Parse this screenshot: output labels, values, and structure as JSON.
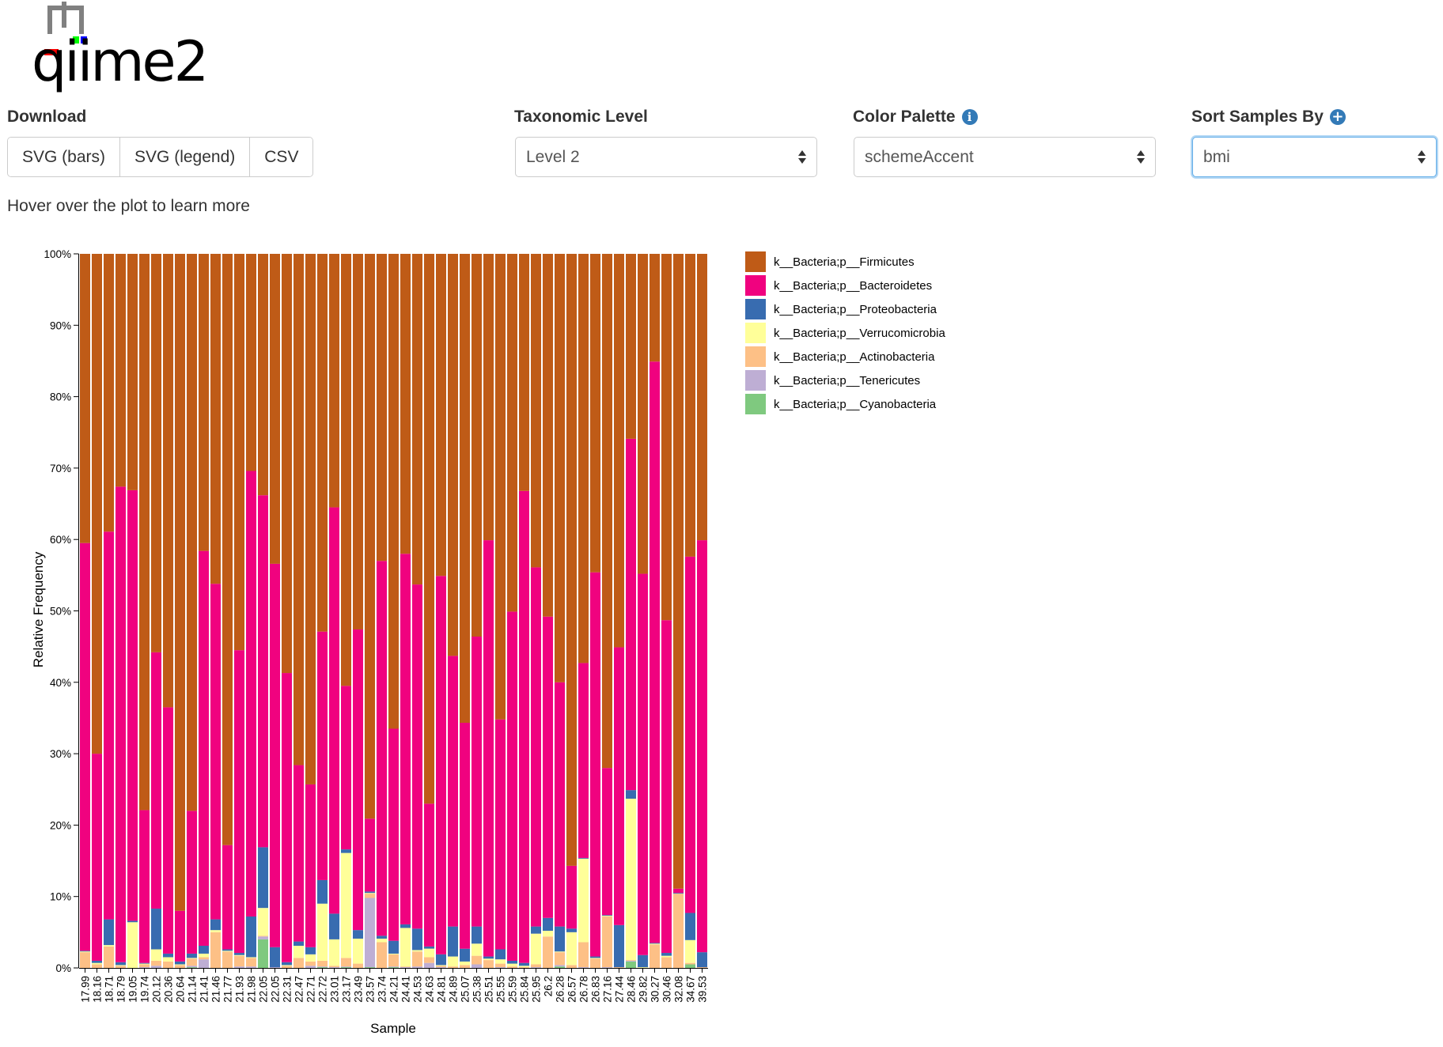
{
  "header": {
    "logo_text": "qiime2"
  },
  "controls": {
    "download": {
      "label": "Download",
      "buttons": [
        "SVG (bars)",
        "SVG (legend)",
        "CSV"
      ]
    },
    "taxonomic_level": {
      "label": "Taxonomic Level",
      "value": "Level 2"
    },
    "color_palette": {
      "label": "Color Palette",
      "value": "schemeAccent",
      "info_icon": "info-icon"
    },
    "sort_samples": {
      "label": "Sort Samples By",
      "value": "bmi",
      "add_icon": "plus-circle-icon"
    }
  },
  "hint": "Hover over the plot to learn more",
  "colors": {
    "firmicutes": "#bf5b17",
    "bacteroidetes": "#f0027f",
    "proteobacteria": "#386cb0",
    "verrucomicrobia": "#ffff99",
    "actinobacteria": "#fdc086",
    "tenericutes": "#beaed4",
    "cyanobacteria": "#7fc97f",
    "focus_ring": "#66afe9",
    "info_badge": "#337ab7"
  },
  "chart_data": {
    "type": "bar",
    "stacked": true,
    "xlabel": "Sample",
    "ylabel": "Relative Frequency",
    "ylim": [
      0,
      100
    ],
    "y_ticks": [
      "0%",
      "10%",
      "20%",
      "30%",
      "40%",
      "50%",
      "60%",
      "70%",
      "80%",
      "90%",
      "100%"
    ],
    "legend_position": "right",
    "categories": [
      "17.99",
      "18.16",
      "18.71",
      "18.79",
      "19.05",
      "19.74",
      "20.12",
      "20.36",
      "20.64",
      "21.14",
      "21.41",
      "21.46",
      "21.77",
      "21.93",
      "21.98",
      "22.05",
      "22.05",
      "22.31",
      "22.47",
      "22.71",
      "22.72",
      "23.01",
      "23.17",
      "23.49",
      "23.57",
      "23.74",
      "24.21",
      "24.41",
      "24.53",
      "24.63",
      "24.81",
      "24.89",
      "25.07",
      "25.38",
      "25.51",
      "25.55",
      "25.59",
      "25.84",
      "25.95",
      "26.2",
      "26.28",
      "26.57",
      "26.78",
      "26.83",
      "27.16",
      "27.44",
      "28.46",
      "29.82",
      "30.27",
      "30.46",
      "32.08",
      "34.67",
      "39.53"
    ],
    "series": [
      {
        "name": "k__Bacteria;p__Firmicutes",
        "values": [
          40.5,
          70.0,
          38.9,
          32.6,
          33.1,
          77.9,
          55.8,
          63.5,
          92.0,
          78.0,
          41.6,
          46.2,
          82.8,
          55.5,
          30.4,
          33.8,
          43.4,
          58.7,
          71.6,
          74.3,
          52.9,
          35.5,
          60.5,
          52.6,
          79.1,
          43.0,
          66.5,
          42.0,
          46.3,
          77.0,
          45.1,
          56.3,
          66.0,
          53.6,
          40.1,
          65.2,
          50.1,
          33.2,
          43.9,
          50.8,
          60.0,
          85.7,
          57.3,
          44.6,
          72.0,
          55.1,
          25.9,
          44.8,
          15.1,
          51.3,
          88.9,
          42.4,
          40.1
        ]
      },
      {
        "name": "k__Bacteria;p__Bacteroidetes",
        "values": [
          57.1,
          29.0,
          54.3,
          66.6,
          60.3,
          21.4,
          35.9,
          34.5,
          7.1,
          20.0,
          55.3,
          47.0,
          14.6,
          42.4,
          62.4,
          49.3,
          53.7,
          40.5,
          24.7,
          22.8,
          34.8,
          56.9,
          22.9,
          42.1,
          10.2,
          52.5,
          29.7,
          51.9,
          48.2,
          20.0,
          53.0,
          37.9,
          31.8,
          40.6,
          58.3,
          32.2,
          48.9,
          66.1,
          50.3,
          42.2,
          34.2,
          8.8,
          27.3,
          53.8,
          20.6,
          38.9,
          49.2,
          53.4,
          81.5,
          46.6,
          0.6,
          49.9,
          57.7
        ]
      },
      {
        "name": "k__Bacteria;p__Proteobacteria",
        "values": [
          0.1,
          0.3,
          3.6,
          0.4,
          0.2,
          0.1,
          5.7,
          0.5,
          0.4,
          0.6,
          1.1,
          1.5,
          0.2,
          0.3,
          5.7,
          8.5,
          2.8,
          0.4,
          0.6,
          1.0,
          3.3,
          3.6,
          0.5,
          1.2,
          0.2,
          0.4,
          1.8,
          0.5,
          3.0,
          0.3,
          1.5,
          4.2,
          1.8,
          2.4,
          0.3,
          1.4,
          0.4,
          0.4,
          1.0,
          1.8,
          3.5,
          0.5,
          0.1,
          0.2,
          0.1,
          5.9,
          1.2,
          1.7,
          0.1,
          0.4,
          0.1,
          3.8,
          2.1
        ]
      },
      {
        "name": "k__Bacteria;p__Verrucomicrobia",
        "values": [
          0.1,
          0.2,
          0.2,
          0.1,
          6.4,
          0.1,
          1.6,
          0.6,
          0.1,
          0.1,
          0.5,
          0.3,
          0.1,
          0.1,
          0.1,
          3.9,
          0.0,
          0.1,
          1.7,
          1.0,
          8.0,
          3.7,
          14.7,
          3.5,
          0.1,
          0.5,
          0.1,
          5.4,
          0.2,
          1.2,
          0.1,
          1.4,
          0.5,
          1.7,
          0.2,
          0.6,
          0.4,
          0.2,
          4.3,
          0.8,
          0.1,
          4.6,
          11.7,
          0.1,
          0.1,
          0.0,
          22.6,
          0.1,
          0.1,
          0.2,
          0.0,
          3.2,
          0.0
        ]
      },
      {
        "name": "k__Bacteria;p__Actinobacteria",
        "values": [
          2.2,
          0.5,
          3.0,
          0.3,
          0.0,
          0.4,
          0.7,
          0.9,
          0.4,
          1.0,
          0.3,
          5.0,
          2.3,
          1.5,
          1.2,
          0.1,
          0.0,
          0.3,
          1.4,
          0.6,
          0.8,
          0.2,
          1.2,
          0.6,
          0.6,
          3.6,
          1.7,
          0.1,
          2.1,
          0.8,
          0.2,
          0.2,
          0.4,
          1.2,
          1.1,
          0.5,
          0.2,
          0.1,
          0.4,
          4.4,
          1.8,
          0.4,
          3.5,
          1.3,
          7.1,
          0.1,
          0.1,
          0.0,
          3.3,
          1.5,
          10.4,
          0.2,
          0.1
        ]
      },
      {
        "name": "k__Bacteria;p__Tenericutes",
        "values": [
          0.0,
          0.0,
          0.0,
          0.0,
          0.0,
          0.1,
          0.3,
          0.0,
          0.0,
          0.2,
          1.2,
          0.0,
          0.0,
          0.2,
          0.2,
          0.4,
          0.1,
          0.0,
          0.0,
          0.3,
          0.1,
          0.1,
          0.1,
          0.0,
          9.7,
          0.0,
          0.1,
          0.1,
          0.2,
          0.7,
          0.1,
          0.0,
          0.0,
          0.5,
          0.0,
          0.1,
          0.0,
          0.0,
          0.1,
          0.0,
          0.2,
          0.0,
          0.1,
          0.0,
          0.1,
          0.0,
          0.1,
          0.0,
          0.0,
          0.0,
          0.0,
          0.0,
          0.0
        ]
      },
      {
        "name": "k__Bacteria;p__Cyanobacteria",
        "values": [
          0.0,
          0.0,
          0.0,
          0.0,
          0.0,
          0.0,
          0.0,
          0.0,
          0.0,
          0.1,
          0.0,
          0.0,
          0.0,
          0.0,
          0.0,
          4.0,
          0.0,
          0.0,
          0.0,
          0.0,
          0.1,
          0.0,
          0.1,
          0.0,
          0.1,
          0.0,
          0.1,
          0.0,
          0.0,
          0.0,
          0.0,
          0.0,
          0.0,
          0.0,
          0.0,
          0.0,
          0.0,
          0.0,
          0.0,
          0.0,
          0.2,
          0.0,
          0.0,
          0.0,
          0.0,
          0.0,
          0.9,
          0.0,
          0.0,
          0.0,
          0.0,
          0.5,
          0.0
        ]
      }
    ]
  }
}
